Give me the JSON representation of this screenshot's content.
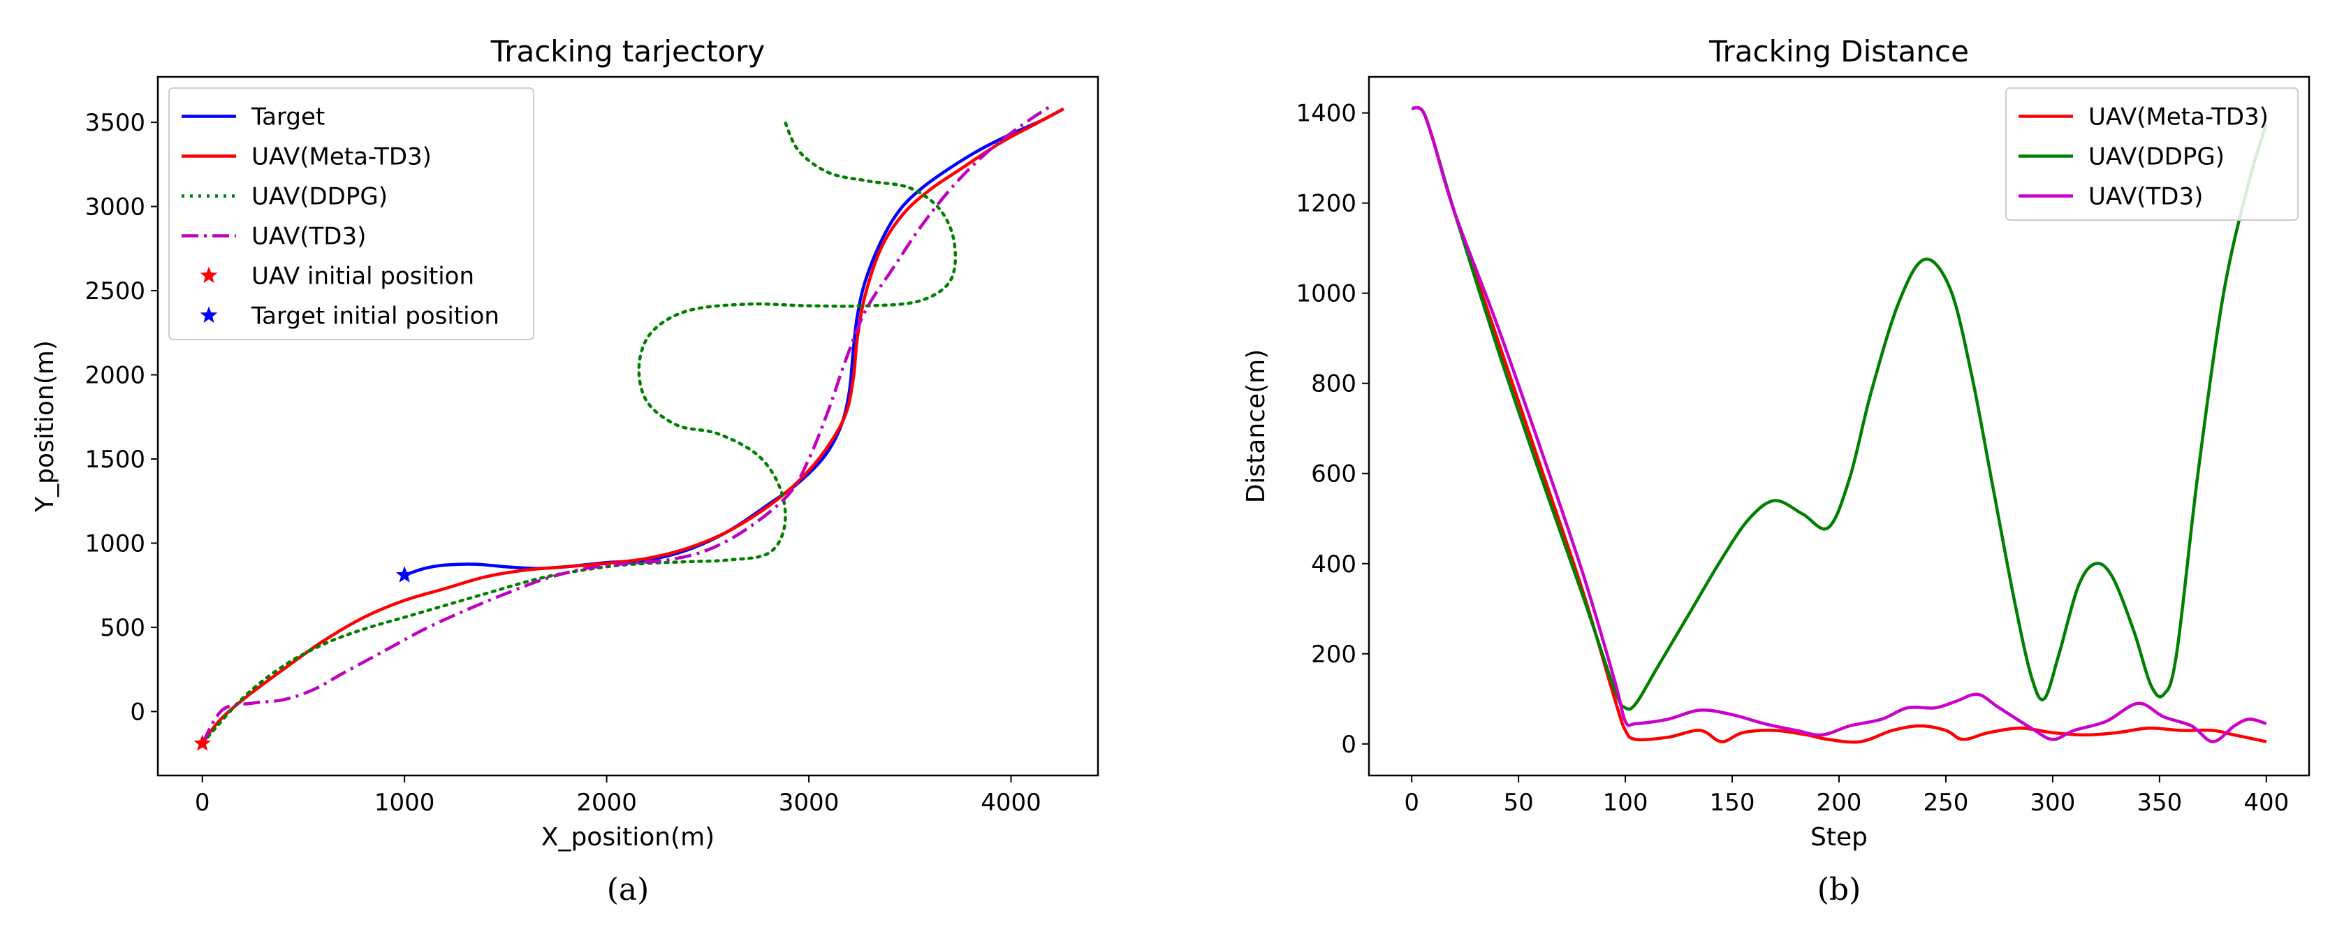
{
  "chart_data": [
    {
      "type": "line",
      "title": "Tracking tarjectory",
      "xlabel": "X_position(m)",
      "ylabel": "Y_position(m)",
      "xlim": [
        -220,
        4430
      ],
      "ylim": [
        -380,
        3770
      ],
      "xticks": [
        0,
        1000,
        2000,
        3000,
        4000
      ],
      "yticks": [
        0,
        500,
        1000,
        1500,
        2000,
        2500,
        3000,
        3500
      ],
      "grid": false,
      "legend_position": "upper-left",
      "caption": "(a)",
      "series": [
        {
          "name": "Target",
          "color": "#0000ff",
          "style": "solid",
          "points": [
            [
              1000,
              810
            ],
            [
              1100,
              850
            ],
            [
              1200,
              870
            ],
            [
              1350,
              875
            ],
            [
              1500,
              860
            ],
            [
              1650,
              850
            ],
            [
              1800,
              860
            ],
            [
              2000,
              885
            ],
            [
              2200,
              900
            ],
            [
              2400,
              960
            ],
            [
              2600,
              1070
            ],
            [
              2800,
              1230
            ],
            [
              2950,
              1360
            ],
            [
              3080,
              1520
            ],
            [
              3160,
              1700
            ],
            [
              3200,
              1900
            ],
            [
              3220,
              2150
            ],
            [
              3240,
              2350
            ],
            [
              3280,
              2560
            ],
            [
              3360,
              2800
            ],
            [
              3450,
              2980
            ],
            [
              3560,
              3110
            ],
            [
              3700,
              3230
            ],
            [
              3850,
              3340
            ],
            [
              4000,
              3430
            ],
            [
              4150,
              3510
            ],
            [
              4260,
              3580
            ]
          ]
        },
        {
          "name": "UAV(Meta-TD3)",
          "color": "#ff0000",
          "style": "solid",
          "points": [
            [
              0,
              -190
            ],
            [
              80,
              -60
            ],
            [
              200,
              70
            ],
            [
              400,
              250
            ],
            [
              600,
              420
            ],
            [
              800,
              560
            ],
            [
              1000,
              660
            ],
            [
              1200,
              730
            ],
            [
              1400,
              800
            ],
            [
              1600,
              840
            ],
            [
              1800,
              860
            ],
            [
              2000,
              880
            ],
            [
              2200,
              910
            ],
            [
              2400,
              970
            ],
            [
              2600,
              1070
            ],
            [
              2800,
              1220
            ],
            [
              2950,
              1370
            ],
            [
              3080,
              1550
            ],
            [
              3180,
              1760
            ],
            [
              3220,
              1980
            ],
            [
              3240,
              2220
            ],
            [
              3280,
              2480
            ],
            [
              3360,
              2760
            ],
            [
              3470,
              2960
            ],
            [
              3600,
              3100
            ],
            [
              3760,
              3230
            ],
            [
              3950,
              3380
            ],
            [
              4120,
              3490
            ],
            [
              4260,
              3580
            ]
          ]
        },
        {
          "name": "UAV(DDPG)",
          "color": "#008000",
          "style": "dotted",
          "points": [
            [
              0,
              -190
            ],
            [
              200,
              80
            ],
            [
              400,
              270
            ],
            [
              600,
              400
            ],
            [
              800,
              490
            ],
            [
              1000,
              560
            ],
            [
              1200,
              630
            ],
            [
              1400,
              700
            ],
            [
              1700,
              800
            ],
            [
              2000,
              860
            ],
            [
              2200,
              880
            ],
            [
              2400,
              890
            ],
            [
              2600,
              900
            ],
            [
              2800,
              940
            ],
            [
              2880,
              1100
            ],
            [
              2860,
              1320
            ],
            [
              2750,
              1520
            ],
            [
              2550,
              1650
            ],
            [
              2350,
              1700
            ],
            [
              2200,
              1840
            ],
            [
              2160,
              2050
            ],
            [
              2220,
              2250
            ],
            [
              2400,
              2380
            ],
            [
              2700,
              2420
            ],
            [
              3000,
              2410
            ],
            [
              3300,
              2410
            ],
            [
              3550,
              2440
            ],
            [
              3700,
              2560
            ],
            [
              3720,
              2780
            ],
            [
              3650,
              2980
            ],
            [
              3500,
              3110
            ],
            [
              3300,
              3150
            ],
            [
              3100,
              3200
            ],
            [
              2950,
              3330
            ],
            [
              2880,
              3510
            ]
          ]
        },
        {
          "name": "UAV(TD3)",
          "color": "#bf00bf",
          "style": "dashdot",
          "points": [
            [
              0,
              -190
            ],
            [
              100,
              10
            ],
            [
              250,
              50
            ],
            [
              400,
              70
            ],
            [
              550,
              130
            ],
            [
              700,
              230
            ],
            [
              900,
              360
            ],
            [
              1100,
              490
            ],
            [
              1300,
              600
            ],
            [
              1500,
              700
            ],
            [
              1700,
              790
            ],
            [
              1900,
              850
            ],
            [
              2100,
              880
            ],
            [
              2300,
              900
            ],
            [
              2500,
              960
            ],
            [
              2700,
              1090
            ],
            [
              2900,
              1290
            ],
            [
              3000,
              1500
            ],
            [
              3100,
              1800
            ],
            [
              3180,
              2080
            ],
            [
              3280,
              2380
            ],
            [
              3420,
              2640
            ],
            [
              3560,
              2890
            ],
            [
              3720,
              3130
            ],
            [
              3880,
              3320
            ],
            [
              4050,
              3480
            ],
            [
              4200,
              3600
            ]
          ]
        }
      ],
      "markers": [
        {
          "name": "UAV initial position",
          "color": "#ff0000",
          "symbol": "star",
          "x": 0,
          "y": -190
        },
        {
          "name": "Target initial position",
          "color": "#0000ff",
          "symbol": "star",
          "x": 1000,
          "y": 810
        }
      ]
    },
    {
      "type": "line",
      "title": "Tracking Distance",
      "xlabel": "Step",
      "ylabel": "Distance(m)",
      "xlim": [
        -20,
        420
      ],
      "ylim": [
        -70,
        1480
      ],
      "xticks": [
        0,
        50,
        100,
        150,
        200,
        250,
        300,
        350,
        400
      ],
      "yticks": [
        0,
        200,
        400,
        600,
        800,
        1000,
        1200,
        1400
      ],
      "grid": false,
      "legend_position": "upper-right",
      "caption": "(b)",
      "series": [
        {
          "name": "UAV(Meta-TD3)",
          "color": "#ff0000",
          "style": "solid",
          "points": [
            [
              0,
              1410
            ],
            [
              5,
              1405
            ],
            [
              10,
              1340
            ],
            [
              20,
              1180
            ],
            [
              40,
              900
            ],
            [
              60,
              620
            ],
            [
              80,
              340
            ],
            [
              95,
              100
            ],
            [
              100,
              30
            ],
            [
              105,
              10
            ],
            [
              120,
              15
            ],
            [
              135,
              30
            ],
            [
              145,
              5
            ],
            [
              155,
              25
            ],
            [
              170,
              30
            ],
            [
              185,
              20
            ],
            [
              195,
              10
            ],
            [
              210,
              5
            ],
            [
              225,
              30
            ],
            [
              238,
              40
            ],
            [
              250,
              30
            ],
            [
              258,
              10
            ],
            [
              270,
              25
            ],
            [
              285,
              35
            ],
            [
              300,
              25
            ],
            [
              315,
              20
            ],
            [
              330,
              25
            ],
            [
              345,
              35
            ],
            [
              360,
              30
            ],
            [
              375,
              30
            ],
            [
              385,
              20
            ],
            [
              400,
              5
            ]
          ]
        },
        {
          "name": "UAV(DDPG)",
          "color": "#008000",
          "style": "solid",
          "points": [
            [
              0,
              1410
            ],
            [
              5,
              1405
            ],
            [
              10,
              1340
            ],
            [
              20,
              1180
            ],
            [
              40,
              880
            ],
            [
              60,
              600
            ],
            [
              80,
              330
            ],
            [
              95,
              120
            ],
            [
              100,
              80
            ],
            [
              105,
              90
            ],
            [
              115,
              170
            ],
            [
              130,
              290
            ],
            [
              145,
              410
            ],
            [
              158,
              500
            ],
            [
              170,
              540
            ],
            [
              183,
              510
            ],
            [
              195,
              480
            ],
            [
              205,
              590
            ],
            [
              215,
              780
            ],
            [
              228,
              980
            ],
            [
              240,
              1075
            ],
            [
              252,
              1010
            ],
            [
              262,
              820
            ],
            [
              272,
              570
            ],
            [
              282,
              320
            ],
            [
              290,
              150
            ],
            [
              296,
              100
            ],
            [
              303,
              200
            ],
            [
              312,
              350
            ],
            [
              320,
              400
            ],
            [
              328,
              370
            ],
            [
              338,
              250
            ],
            [
              346,
              130
            ],
            [
              352,
              110
            ],
            [
              358,
              200
            ],
            [
              368,
              600
            ],
            [
              380,
              1000
            ],
            [
              392,
              1250
            ],
            [
              400,
              1375
            ]
          ]
        },
        {
          "name": "UAV(TD3)",
          "color": "#cc00cc",
          "style": "solid",
          "points": [
            [
              0,
              1410
            ],
            [
              5,
              1405
            ],
            [
              10,
              1340
            ],
            [
              20,
              1180
            ],
            [
              40,
              930
            ],
            [
              60,
              660
            ],
            [
              80,
              380
            ],
            [
              95,
              140
            ],
            [
              100,
              50
            ],
            [
              105,
              45
            ],
            [
              120,
              55
            ],
            [
              135,
              75
            ],
            [
              150,
              65
            ],
            [
              165,
              45
            ],
            [
              180,
              30
            ],
            [
              192,
              20
            ],
            [
              205,
              40
            ],
            [
              220,
              55
            ],
            [
              232,
              80
            ],
            [
              245,
              80
            ],
            [
              255,
              95
            ],
            [
              265,
              110
            ],
            [
              275,
              80
            ],
            [
              290,
              35
            ],
            [
              300,
              10
            ],
            [
              310,
              30
            ],
            [
              325,
              50
            ],
            [
              340,
              90
            ],
            [
              352,
              60
            ],
            [
              365,
              40
            ],
            [
              375,
              5
            ],
            [
              385,
              40
            ],
            [
              392,
              55
            ],
            [
              400,
              45
            ]
          ]
        }
      ]
    }
  ]
}
